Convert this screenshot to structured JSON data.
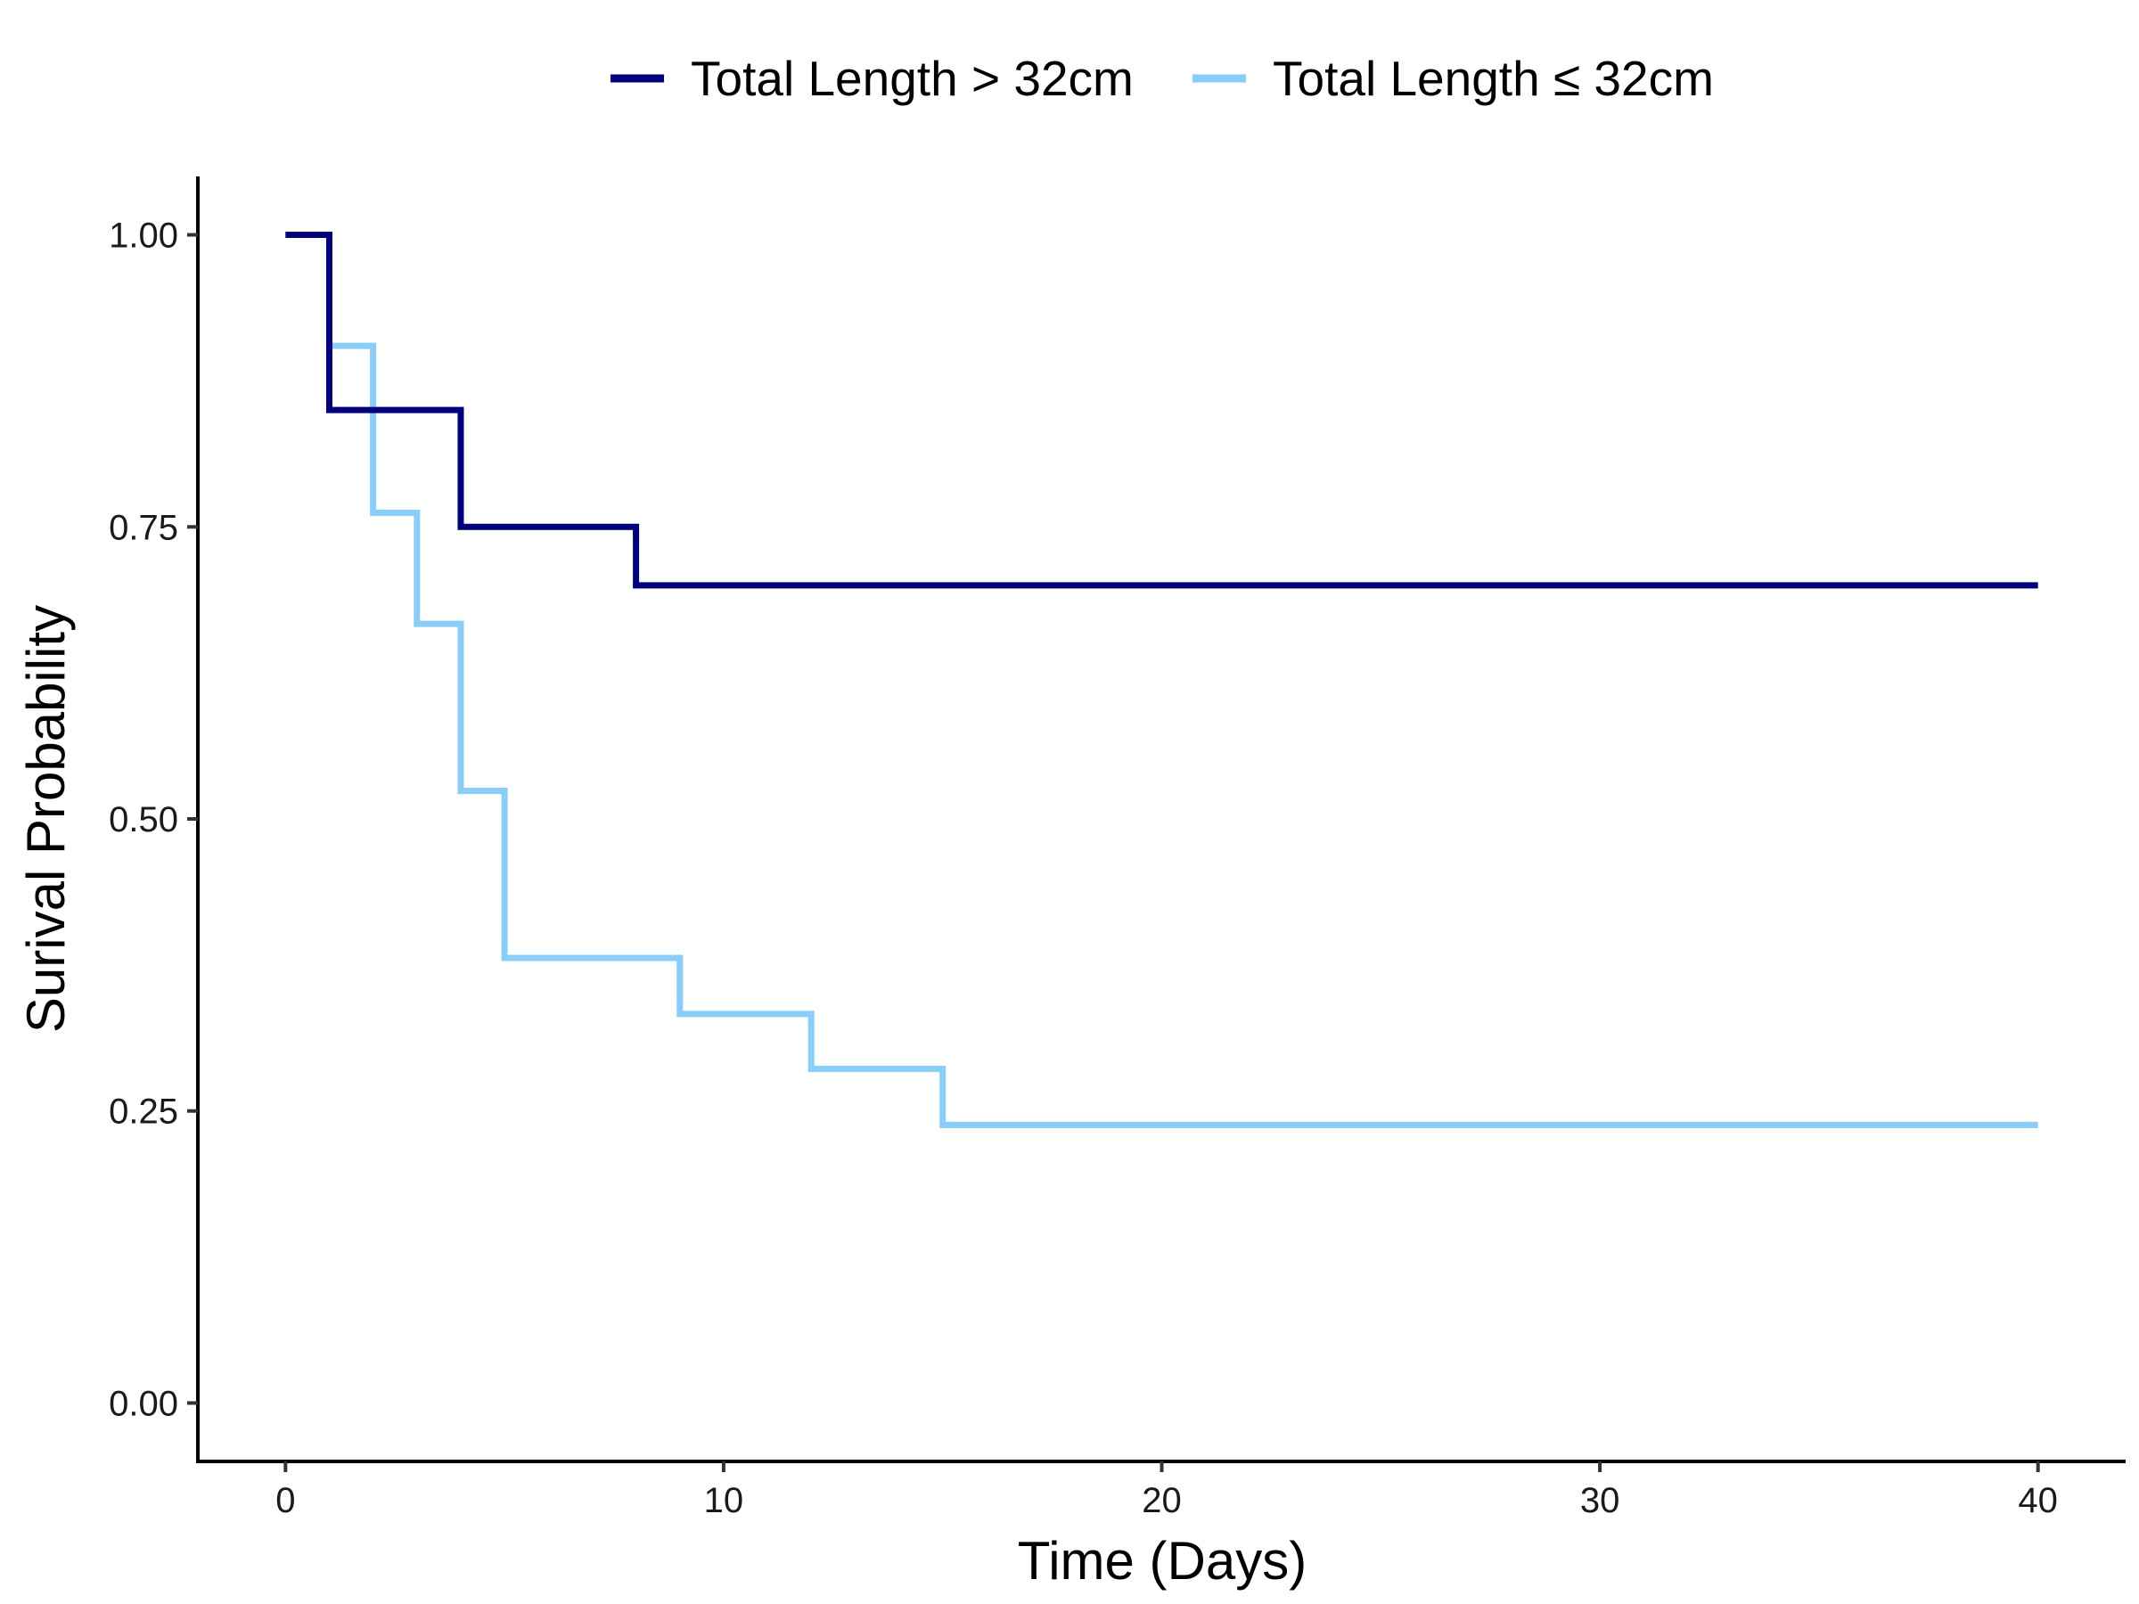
{
  "chart_data": {
    "type": "line",
    "step": true,
    "title": "",
    "xlabel": "Time (Days)",
    "ylabel": "Surival Probability",
    "xlim": [
      -2,
      42
    ],
    "ylim": [
      -0.05,
      1.05
    ],
    "xticks": [
      0,
      10,
      20,
      30,
      40
    ],
    "xtick_labels": [
      "0",
      "10",
      "20",
      "30",
      "40"
    ],
    "yticks": [
      0,
      0.25,
      0.5,
      0.75,
      1.0
    ],
    "ytick_labels": [
      "0.00",
      "0.25",
      "0.50",
      "0.75",
      "1.00"
    ],
    "grid": false,
    "legend_position": "top",
    "series": [
      {
        "name": "Total Length > 32cm",
        "color": "#000080",
        "x": [
          0,
          1,
          4,
          8,
          40
        ],
        "y": [
          1.0,
          0.85,
          0.75,
          0.7,
          0.7
        ]
      },
      {
        "name": "Total Length ≤ 32cm",
        "color": "#87CEFA",
        "x": [
          0,
          1,
          2,
          3,
          4,
          5,
          9,
          12,
          15,
          40
        ],
        "y": [
          1.0,
          0.905,
          0.762,
          0.667,
          0.524,
          0.381,
          0.333,
          0.286,
          0.238,
          0.238
        ]
      }
    ]
  }
}
